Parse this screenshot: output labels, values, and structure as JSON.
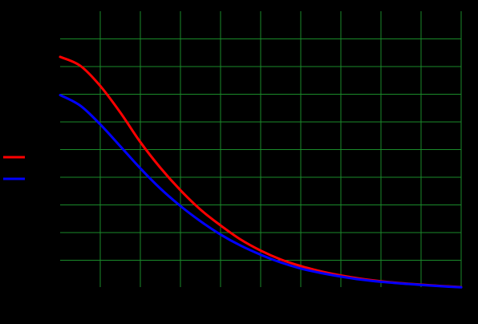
{
  "chart_data": {
    "type": "line",
    "title": "",
    "xlabel": "",
    "ylabel": "",
    "xlim": [
      0,
      10
    ],
    "ylim": [
      0,
      1
    ],
    "grid": true,
    "legend_placement": "left",
    "series": [
      {
        "color": "#ff0000",
        "x": [
          0,
          0.5,
          1,
          1.5,
          2,
          2.5,
          3,
          3.5,
          4,
          4.5,
          5,
          5.5,
          6,
          6.5,
          7,
          7.5,
          8,
          8.5,
          9,
          9.5,
          10
        ],
        "y": [
          0.835,
          0.803,
          0.73,
          0.634,
          0.527,
          0.434,
          0.353,
          0.283,
          0.226,
          0.175,
          0.135,
          0.103,
          0.079,
          0.06,
          0.045,
          0.033,
          0.024,
          0.017,
          0.012,
          0.007,
          0.003
        ]
      },
      {
        "color": "#0000ff",
        "x": [
          0,
          0.5,
          1,
          1.5,
          2,
          2.5,
          3,
          3.5,
          4,
          4.5,
          5,
          5.5,
          6,
          6.5,
          7,
          7.5,
          8,
          8.5,
          9,
          9.5,
          10
        ],
        "y": [
          0.697,
          0.659,
          0.591,
          0.512,
          0.432,
          0.359,
          0.296,
          0.241,
          0.193,
          0.153,
          0.12,
          0.092,
          0.07,
          0.054,
          0.041,
          0.03,
          0.022,
          0.016,
          0.011,
          0.006,
          0.002
        ]
      }
    ]
  },
  "colors": {
    "background": "#000000",
    "grid": "#1a8a2a"
  }
}
